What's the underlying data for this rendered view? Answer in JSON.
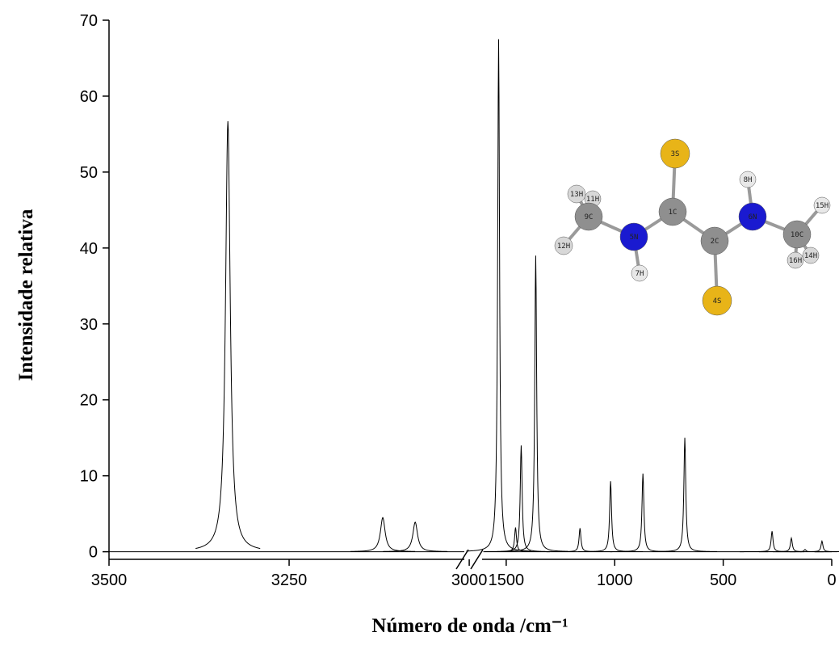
{
  "chart_data": {
    "type": "line",
    "x_label": "Número de onda /cm⁻¹",
    "y_label": "Intensidade relativa",
    "color": "#000000",
    "x_segments": [
      {
        "xlim": [
          3500,
          2990
        ],
        "xticks": [
          3500,
          3250,
          3000
        ]
      },
      {
        "xlim": [
          1600,
          0
        ],
        "xticks": [
          1500,
          1000,
          500,
          0
        ]
      }
    ],
    "ylim": [
      -1,
      70
    ],
    "yticks": [
      0,
      10,
      20,
      30,
      40,
      50,
      60,
      70
    ],
    "x": [
      3335,
      3120,
      3075,
      1535,
      1457,
      1431,
      1364,
      1160,
      1019,
      870,
      677,
      275,
      186,
      123,
      45
    ],
    "values": [
      56.7,
      4.5,
      3.9,
      67.5,
      3.2,
      14,
      39,
      3.1,
      9.3,
      10.3,
      15,
      2.7,
      1.8,
      0.3,
      1.4
    ],
    "annotations": [
      "3S",
      "8H",
      "13H",
      "11H",
      "1C",
      "6N",
      "15H",
      "9C",
      "5N",
      "2C",
      "10C",
      "12H",
      "16H",
      "14H",
      "7H",
      "4S"
    ]
  }
}
